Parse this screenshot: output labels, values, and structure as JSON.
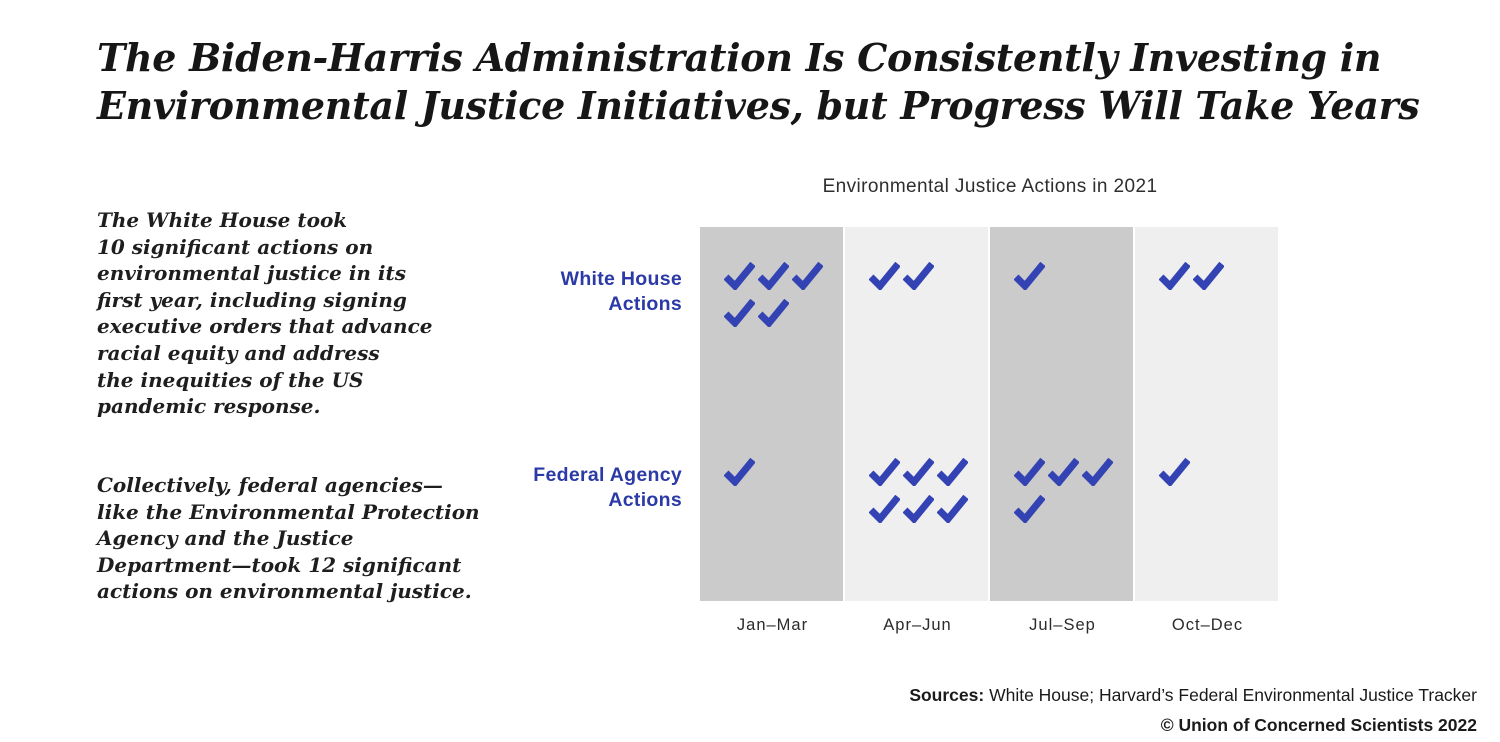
{
  "title": {
    "lines": [
      "The Biden-Harris Administration Is Consistently Investing in",
      "Environmental Justice Initiatives, but Progress Will Take Years"
    ]
  },
  "notes": [
    {
      "lines": [
        "The White House took",
        "10 significant actions on",
        "environmental justice in its",
        "first year, including signing",
        "executive orders that advance",
        "racial equity and address",
        "the inequities of the US",
        "pandemic response."
      ]
    },
    {
      "lines": [
        "Collectively, federal agencies—",
        "like the Environmental Protection",
        "Agency and the Justice",
        "Department—took 12 significant",
        "actions on environmental justice."
      ]
    }
  ],
  "chart_data": {
    "type": "bar",
    "variant": "checkmark-pictogram",
    "title": "Environmental Justice Actions in 2021",
    "categories": [
      "Jan–Mar",
      "Apr–Jun",
      "Jul–Sep",
      "Oct–Dec"
    ],
    "series": [
      {
        "name": "White House Actions",
        "label_lines": [
          "White House",
          "Actions"
        ],
        "values": [
          5,
          2,
          1,
          2
        ],
        "total": 10
      },
      {
        "name": "Federal Agency Actions",
        "label_lines": [
          "Federal Agency",
          "Actions"
        ],
        "values": [
          1,
          6,
          4,
          1
        ],
        "total": 12
      }
    ],
    "band_shading": [
      "dark",
      "light",
      "dark",
      "light"
    ],
    "colors": {
      "check": "#3443b3",
      "row_label": "#2b3aa6",
      "band_dark": "#cbcbcb",
      "band_light": "#efefef"
    },
    "legend_position": "row labels at left",
    "grid": "off"
  },
  "footer": {
    "sources_label": "Sources:",
    "sources_text": " White House; Harvard’s Federal Environmental Justice Tracker",
    "copyright": "© Union of Concerned Scientists 2022"
  }
}
